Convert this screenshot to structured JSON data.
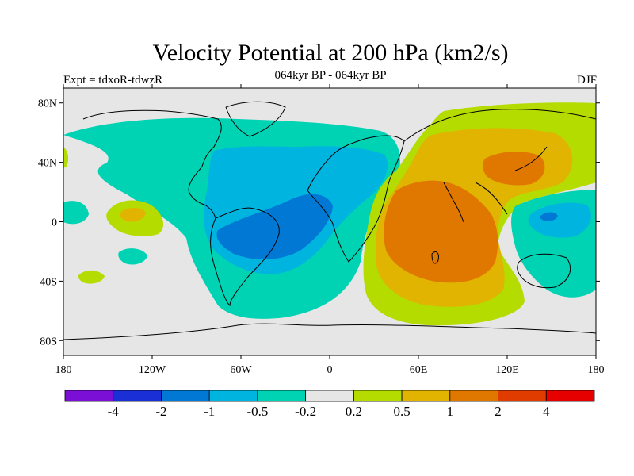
{
  "title": "Velocity Potential at 200 hPa (km2/s)",
  "subtitle": "064kyr BP - 064kyr BP",
  "expt_label": "Expt = tdxoR-tdwzR",
  "season": "DJF",
  "map": {
    "projection": "cylindrical equidistant",
    "lon_range": [
      -180,
      180
    ],
    "lat_range": [
      -90,
      90
    ],
    "x_ticks": [
      "180",
      "120W",
      "60W",
      "0",
      "60E",
      "120E",
      "180"
    ],
    "y_ticks": [
      "80N",
      "40N",
      "0",
      "40S",
      "80S"
    ],
    "background_color": "#e6e6e6"
  },
  "colorbar": {
    "labels": [
      "-4",
      "-2",
      "-1",
      "-0.5",
      "-0.2",
      "0.2",
      "0.5",
      "1",
      "2",
      "4"
    ],
    "colors": [
      "#7b0fd6",
      "#1a2fd6",
      "#0078d4",
      "#00b4e0",
      "#00d2b4",
      "#e6e6e6",
      "#b4dc00",
      "#e0b400",
      "#e07800",
      "#e03c00",
      "#e60000"
    ]
  }
}
